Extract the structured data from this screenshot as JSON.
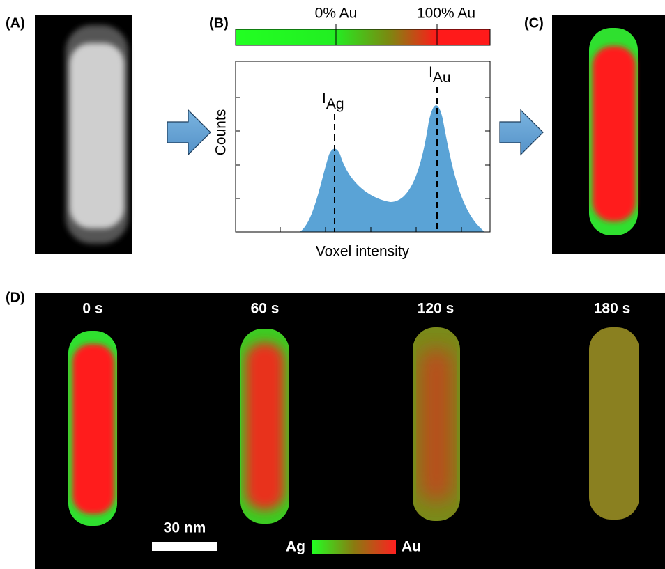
{
  "panel_a": {
    "label": "(A)"
  },
  "panel_b": {
    "label": "(B)",
    "colorbar_labels": [
      "0% Au",
      "100% Au"
    ],
    "y_axis_label": "Counts",
    "x_axis_label": "Voxel intensity",
    "peaks": [
      {
        "symbol": "I",
        "subscript": "Ag"
      },
      {
        "symbol": "I",
        "subscript": "Au"
      }
    ]
  },
  "panel_c": {
    "label": "(C)"
  },
  "panel_d": {
    "label": "(D)",
    "times": [
      "0 s",
      "60 s",
      "120 s",
      "180 s"
    ],
    "scale_bar": "30 nm",
    "colorbar_left": "Ag",
    "colorbar_right": "Au"
  }
}
